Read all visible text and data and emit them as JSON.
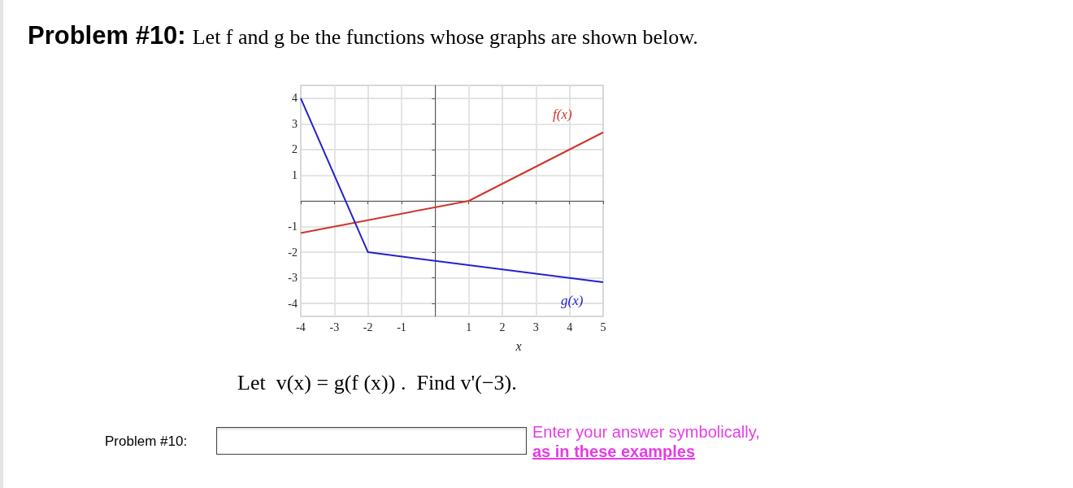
{
  "chart_data": {
    "type": "line",
    "title": "Problem #10:",
    "subtitle": "Let f and g be the functions whose graphs are shown below.",
    "xlabel": "x",
    "annotations": [
      "Let  v(x) = g(f (x)) .  Find v'(−3).",
      "Problem #10:",
      "Enter your answer symbolically,",
      "as in these examples"
    ],
    "series": [
      {
        "name": "f(x)",
        "color": "#d0342c",
        "x": [
          -4,
          1,
          5
        ],
        "values": [
          -1.25,
          0,
          2.67
        ]
      },
      {
        "name": "g(x)",
        "color": "#2222cc",
        "x": [
          -4,
          -2,
          5
        ],
        "values": [
          4,
          -2,
          -3.17
        ]
      }
    ],
    "xlim": [
      -4,
      5
    ],
    "ylim": [
      -4.5,
      4.5
    ],
    "xticks": [
      -4,
      -3,
      -2,
      -1,
      {
        "value": 0,
        "label": null
      },
      1,
      2,
      3,
      4,
      5
    ],
    "yticks": [
      -4,
      -3,
      -2,
      -1,
      {
        "value": 0,
        "label": null
      },
      1,
      2,
      3,
      4
    ],
    "grid": true,
    "marker": "none",
    "line_style": "solid",
    "legend": false
  }
}
